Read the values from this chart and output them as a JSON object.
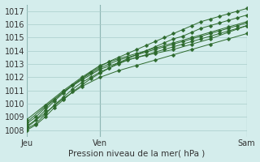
{
  "title": "",
  "xlabel": "Pression niveau de la mer( hPa )",
  "ylabel": "",
  "bg_color": "#d4edec",
  "grid_color": "#a8ccca",
  "line_color": "#2d6a2d",
  "marker_color": "#2d6a2d",
  "ylim": [
    1007.5,
    1017.5
  ],
  "xlim": [
    0,
    48
  ],
  "xtick_positions": [
    0,
    16,
    48
  ],
  "xtick_labels": [
    "Jeu",
    "Ven",
    "Sam"
  ],
  "ytick_positions": [
    1008,
    1009,
    1010,
    1011,
    1012,
    1013,
    1014,
    1015,
    1016,
    1017
  ],
  "vlines": [
    0,
    16,
    48
  ],
  "series": [
    {
      "x": [
        0,
        2,
        4,
        6,
        8,
        10,
        12,
        14,
        16,
        18,
        20,
        22,
        24,
        26,
        28,
        30,
        32,
        34,
        36,
        38,
        40,
        42,
        44,
        46,
        48
      ],
      "y": [
        1008.3,
        1008.8,
        1009.5,
        1010.2,
        1010.8,
        1011.4,
        1011.9,
        1012.4,
        1012.8,
        1013.2,
        1013.5,
        1013.8,
        1014.1,
        1014.4,
        1014.7,
        1015.0,
        1015.3,
        1015.6,
        1015.9,
        1016.2,
        1016.4,
        1016.6,
        1016.8,
        1017.0,
        1017.2
      ]
    },
    {
      "x": [
        0,
        2,
        4,
        6,
        8,
        10,
        12,
        14,
        16,
        18,
        20,
        22,
        24,
        26,
        28,
        30,
        32,
        34,
        36,
        38,
        40,
        42,
        44,
        46,
        48
      ],
      "y": [
        1008.0,
        1008.4,
        1009.0,
        1009.7,
        1010.3,
        1010.9,
        1011.4,
        1011.9,
        1012.3,
        1012.7,
        1013.1,
        1013.4,
        1013.7,
        1014.0,
        1014.3,
        1014.6,
        1014.9,
        1015.1,
        1015.4,
        1015.7,
        1015.9,
        1016.1,
        1016.3,
        1016.5,
        1016.7
      ]
    },
    {
      "x": [
        0,
        2,
        4,
        6,
        8,
        10,
        12,
        14,
        16,
        18,
        20,
        22,
        24,
        26,
        28,
        30,
        32,
        34,
        36,
        38,
        40,
        42,
        44,
        46,
        48
      ],
      "y": [
        1008.5,
        1009.0,
        1009.7,
        1010.3,
        1010.9,
        1011.4,
        1011.9,
        1012.3,
        1012.7,
        1013.0,
        1013.3,
        1013.5,
        1013.7,
        1013.9,
        1014.1,
        1014.3,
        1014.5,
        1014.7,
        1014.9,
        1015.1,
        1015.3,
        1015.5,
        1015.7,
        1015.9,
        1016.1
      ]
    },
    {
      "x": [
        0,
        2,
        4,
        6,
        8,
        10,
        12,
        14,
        16,
        18,
        20,
        22,
        24,
        26,
        28,
        30,
        32,
        34,
        36,
        38,
        40,
        42,
        44,
        46,
        48
      ],
      "y": [
        1008.1,
        1008.5,
        1009.2,
        1009.9,
        1010.5,
        1011.1,
        1011.6,
        1012.0,
        1012.4,
        1012.7,
        1013.0,
        1013.3,
        1013.5,
        1013.7,
        1013.9,
        1014.1,
        1014.3,
        1014.5,
        1014.7,
        1014.9,
        1015.1,
        1015.3,
        1015.5,
        1015.7,
        1015.9
      ]
    },
    {
      "x": [
        0,
        4,
        8,
        12,
        16,
        20,
        24,
        28,
        32,
        36,
        40,
        44,
        48
      ],
      "y": [
        1008.8,
        1009.9,
        1011.0,
        1012.0,
        1012.9,
        1013.4,
        1013.8,
        1014.2,
        1014.6,
        1015.0,
        1015.4,
        1015.8,
        1016.2
      ]
    },
    {
      "x": [
        0,
        4,
        8,
        12,
        16,
        20,
        24,
        28,
        32,
        36,
        40,
        44,
        48
      ],
      "y": [
        1008.2,
        1009.3,
        1010.4,
        1011.3,
        1012.0,
        1012.5,
        1012.9,
        1013.3,
        1013.7,
        1014.1,
        1014.5,
        1014.9,
        1015.3
      ]
    },
    {
      "x": [
        0,
        4,
        8,
        12,
        16,
        20,
        24,
        28,
        32,
        36,
        40,
        44,
        48
      ],
      "y": [
        1008.6,
        1009.8,
        1010.9,
        1011.8,
        1012.6,
        1013.1,
        1013.5,
        1013.8,
        1014.1,
        1014.5,
        1014.9,
        1015.4,
        1015.9
      ]
    }
  ]
}
